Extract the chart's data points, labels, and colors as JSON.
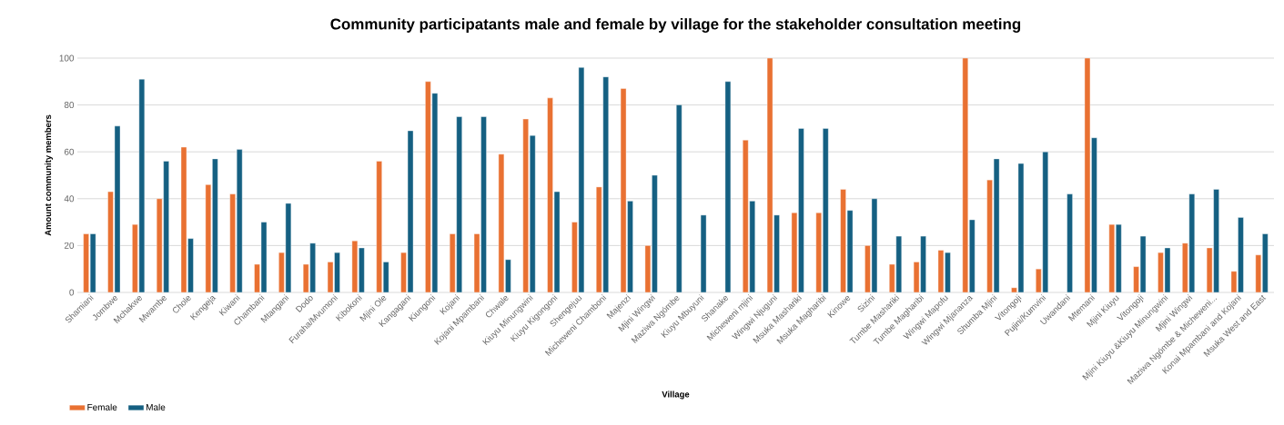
{
  "chart_data": {
    "type": "bar",
    "title": "Community participatants male and female by village for the stakeholder consultation meeting",
    "xlabel": "Village",
    "ylabel": "Amount community members",
    "categories": [
      "Shamiani",
      "Jombwe",
      "Mchakwe",
      "Mwambe",
      "Chole",
      "Kengeja",
      "Kiwani",
      "Chambani",
      "Mtangani",
      "Dodo",
      "Furaha/Mvumoni",
      "Kibokoni",
      "Mjini Ole",
      "Kangagani",
      "Kiungoni",
      "Kojani",
      "Kojani Mpambani",
      "Chwale",
      "Kiuyu Minungwini",
      "Kiuyu Kigongoni",
      "Shengejuu",
      "Micheweni Chamboni",
      "Majenzi",
      "Mjini Wingwi",
      "Maziwa Ngómbe",
      "Kiuyu Mbuyuni",
      "Shanake",
      "Micheweni mjini",
      "Wingwi Njuguni",
      "Msuka Mashariki",
      "Msuka Magharibi",
      "Kinowe",
      "Sizini",
      "Tumbe Mashariki",
      "Tumbe Magharibi",
      "Wingwi Mapofu",
      "Wingwi Mjananza",
      "Shumba Mjini",
      "Vitongoji",
      "Pujini/Kumvini",
      "Uwandani",
      "Mtemani",
      "Mjini Kiuyu",
      "Vitongoji",
      "Mjini Kiuyu &Kiuyu Minungwini",
      "Mjini Wingwi",
      "Maziwa Ngómbe & Micheweni...",
      "Konai Mpambani and Kojani",
      "Msuka West and East"
    ],
    "series": [
      {
        "name": "Female",
        "color": "#e97132",
        "values": [
          25,
          43,
          29,
          40,
          62,
          46,
          42,
          12,
          17,
          12,
          13,
          22,
          56,
          17,
          90,
          25,
          25,
          59,
          74,
          83,
          30,
          45,
          87,
          20,
          null,
          null,
          null,
          65,
          100,
          34,
          34,
          44,
          20,
          12,
          13,
          18,
          100,
          48,
          2,
          10,
          null,
          100,
          29,
          11,
          17,
          21,
          19,
          9,
          16
        ]
      },
      {
        "name": "Male",
        "color": "#156082",
        "values": [
          25,
          71,
          91,
          56,
          23,
          57,
          61,
          30,
          38,
          21,
          17,
          19,
          13,
          69,
          85,
          75,
          75,
          14,
          67,
          43,
          96,
          92,
          39,
          50,
          80,
          33,
          90,
          39,
          33,
          70,
          70,
          35,
          40,
          24,
          24,
          17,
          31,
          57,
          55,
          60,
          42,
          66,
          29,
          24,
          19,
          42,
          44,
          32,
          25
        ]
      }
    ],
    "ylim": [
      0,
      100
    ],
    "yticks": [
      0,
      20,
      40,
      60,
      80,
      100
    ],
    "grid": "y",
    "legend": "bottom left"
  }
}
